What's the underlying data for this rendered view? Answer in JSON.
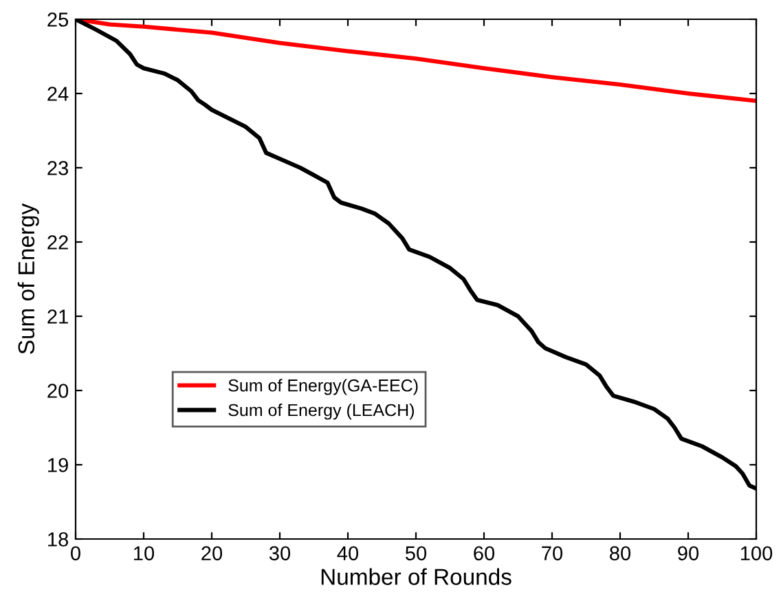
{
  "chart_data": {
    "type": "line",
    "xlabel": "Number of Rounds",
    "ylabel": "Sum of Energy",
    "xlim": [
      0,
      100
    ],
    "ylim": [
      18,
      25
    ],
    "xticks": [
      0,
      10,
      20,
      30,
      40,
      50,
      60,
      70,
      80,
      90,
      100
    ],
    "yticks": [
      18,
      19,
      20,
      21,
      22,
      23,
      24,
      25
    ],
    "grid": false,
    "legend": "bottom left",
    "marker": "none",
    "line_style": "solid",
    "series": [
      {
        "name": "Sum of Energy(GA-EEC)",
        "color": "#ff0000",
        "x": [
          0,
          5,
          10,
          20,
          30,
          40,
          50,
          60,
          70,
          80,
          90,
          100
        ],
        "values": [
          25.0,
          24.93,
          24.9,
          24.82,
          24.68,
          24.57,
          24.47,
          24.34,
          24.22,
          24.12,
          24.0,
          23.9
        ]
      },
      {
        "name": "Sum of Energy (LEACH)",
        "color": "#000000",
        "x": [
          0,
          3,
          6,
          8,
          9,
          10,
          13,
          15,
          17,
          18,
          19,
          20,
          25,
          27,
          28,
          30,
          33,
          35,
          37,
          38,
          39,
          42,
          44,
          46,
          48,
          49,
          52,
          55,
          57,
          58,
          59,
          62,
          65,
          67,
          68,
          69,
          72,
          75,
          77,
          78,
          79,
          82,
          85,
          87,
          88,
          89,
          92,
          95,
          97,
          98,
          99,
          100
        ],
        "values": [
          25.0,
          24.86,
          24.71,
          24.53,
          24.39,
          24.34,
          24.27,
          24.18,
          24.03,
          23.91,
          23.85,
          23.78,
          23.55,
          23.4,
          23.2,
          23.12,
          23.0,
          22.9,
          22.8,
          22.6,
          22.53,
          22.45,
          22.38,
          22.25,
          22.05,
          21.9,
          21.8,
          21.65,
          21.5,
          21.35,
          21.22,
          21.15,
          21.0,
          20.8,
          20.65,
          20.57,
          20.45,
          20.35,
          20.2,
          20.05,
          19.93,
          19.85,
          19.75,
          19.62,
          19.5,
          19.35,
          19.25,
          19.1,
          18.98,
          18.88,
          18.72,
          18.68
        ]
      }
    ]
  }
}
